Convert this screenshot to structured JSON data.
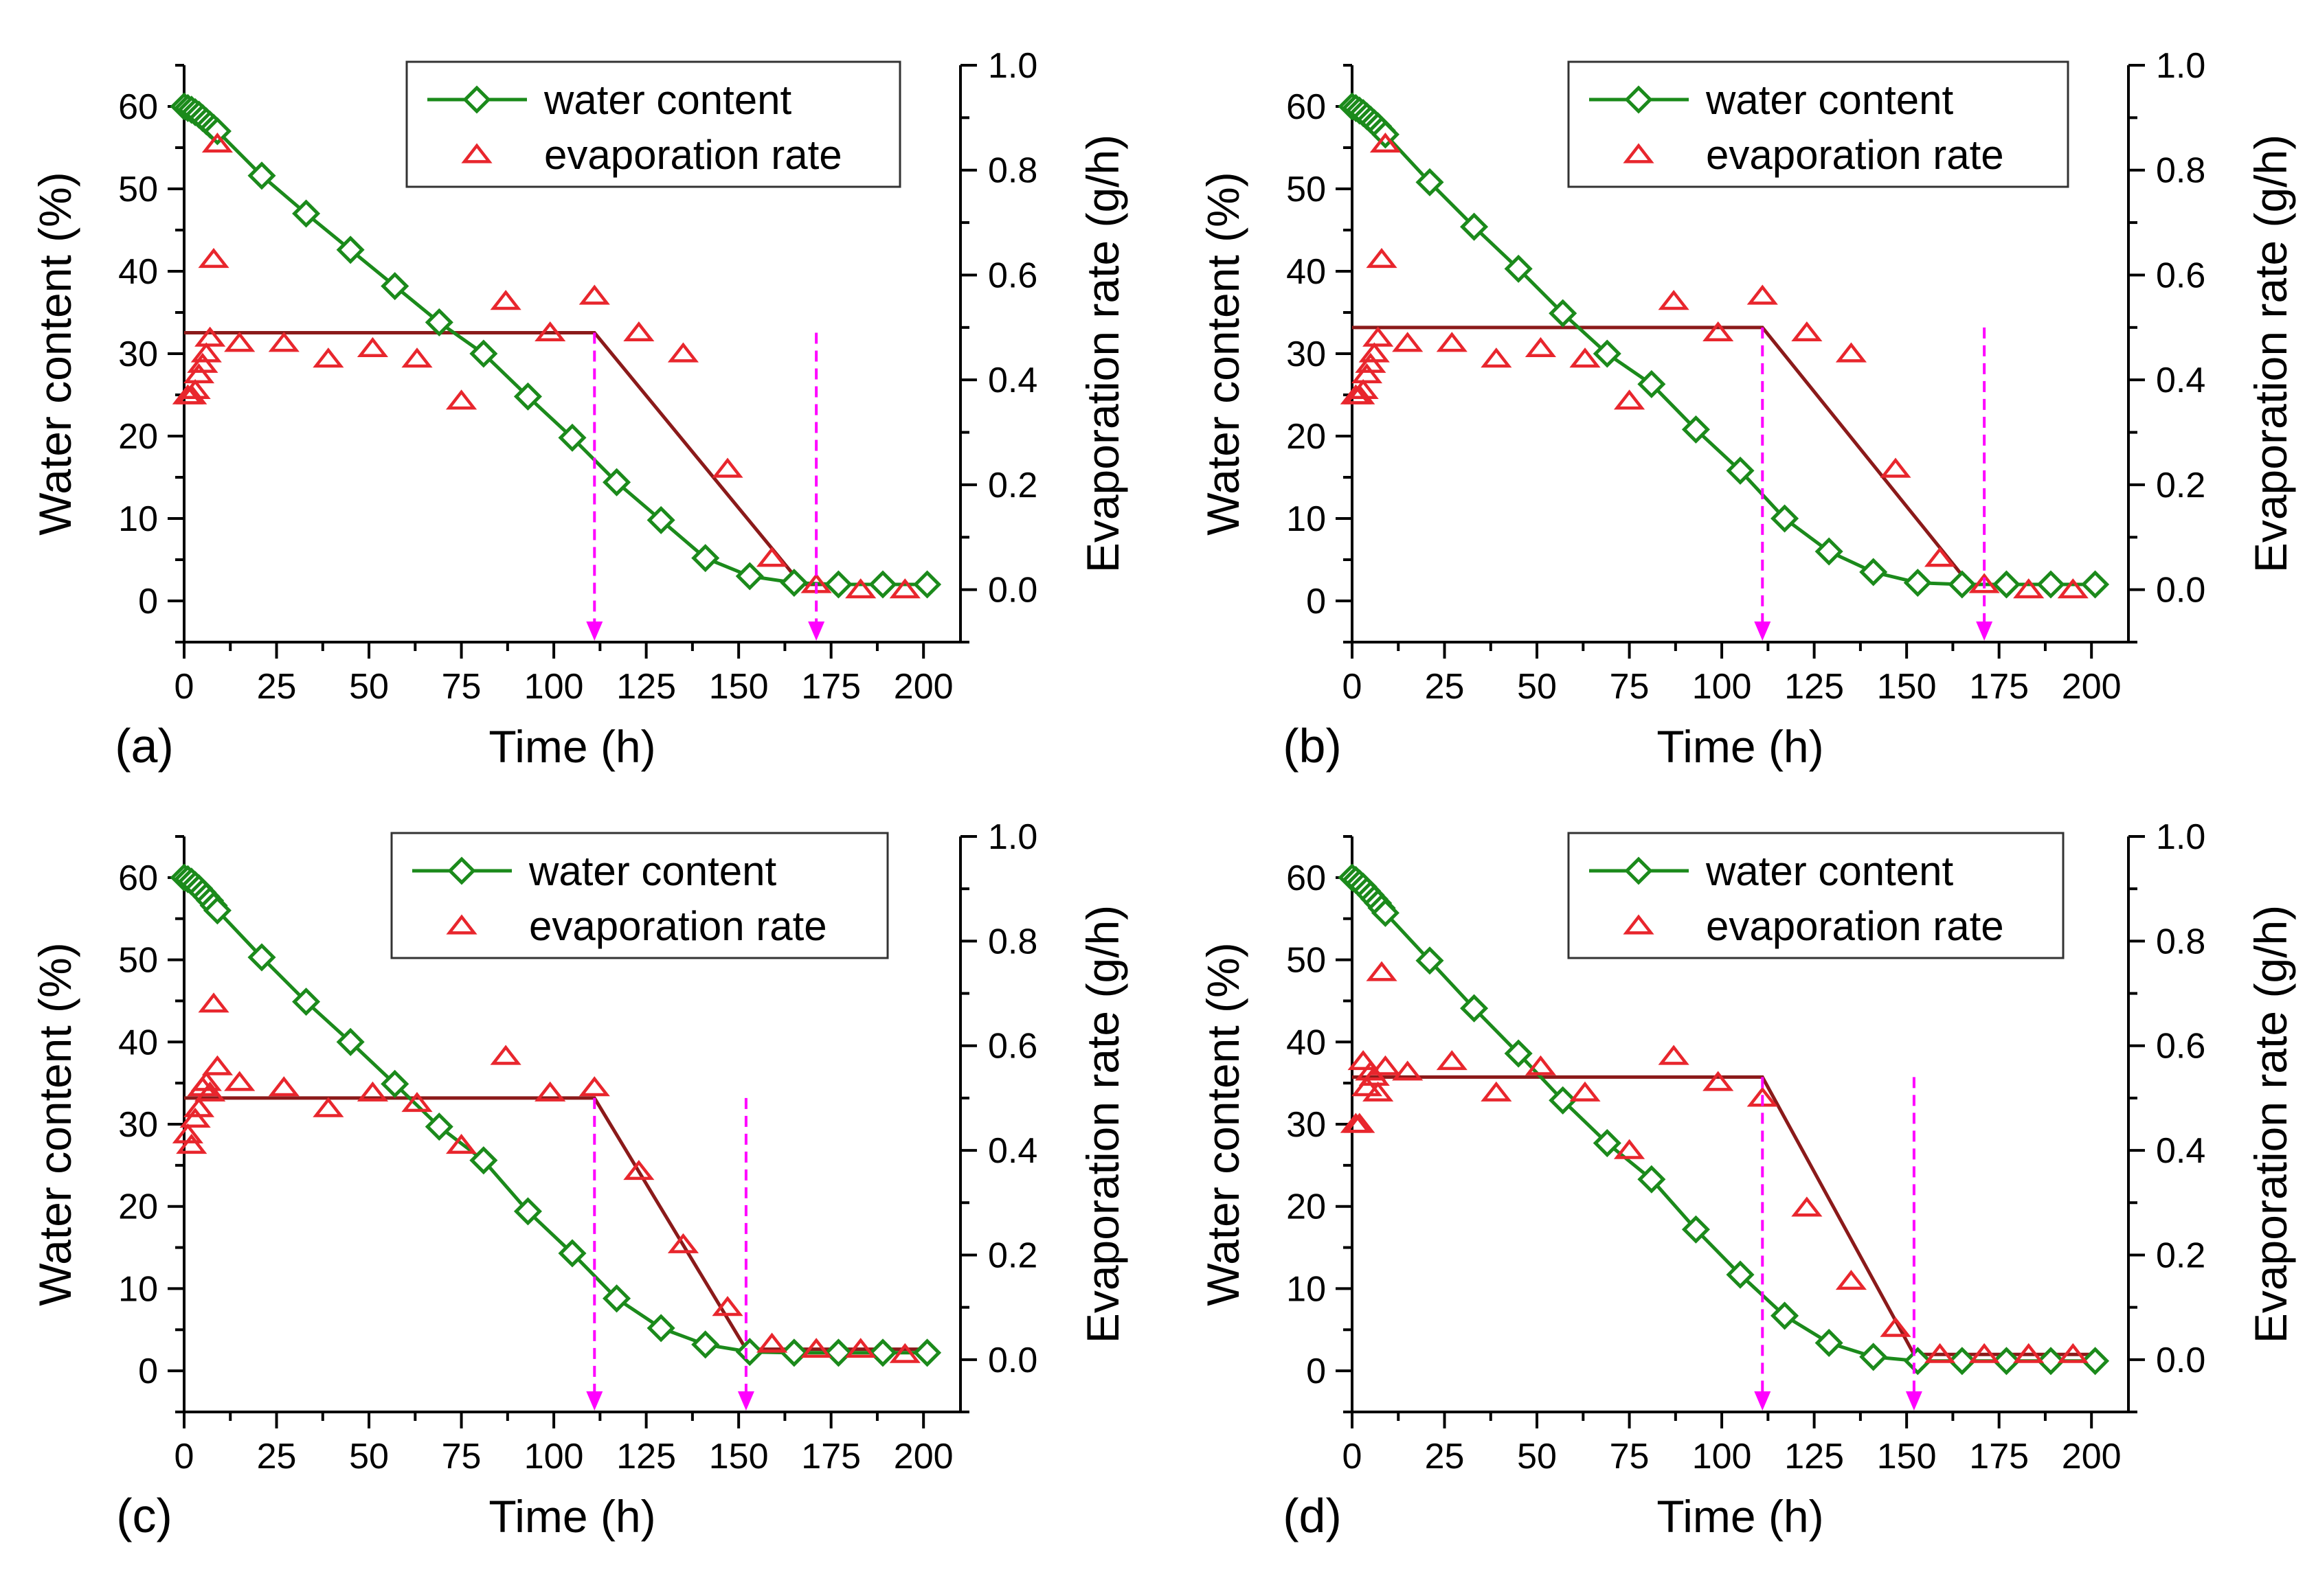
{
  "colors": {
    "water_content": "#1b8a1b",
    "evaporation_rate": "#e8262d",
    "fit_line": "#8b1a1a",
    "marker": "#ff00ff"
  },
  "chart_data": [
    {
      "type": "line",
      "panel_label": "(a)",
      "xlabel": "Time (h)",
      "ylabel": "Water content (%)",
      "y2label": "Evaporation rate (g/h)",
      "xlim": [
        0,
        210
      ],
      "ylim": [
        -5,
        65
      ],
      "y2lim": [
        -0.1,
        1.0
      ],
      "x_ticks": [
        "0",
        "25",
        "50",
        "75",
        "100",
        "125",
        "150",
        "175",
        "200"
      ],
      "y_ticks": [
        "0",
        "10",
        "20",
        "30",
        "40",
        "50",
        "60"
      ],
      "y2_ticks": [
        "0.0",
        "0.2",
        "0.4",
        "0.6",
        "0.8",
        "1.0"
      ],
      "legend": [
        "water content",
        "evaporation rate"
      ],
      "legend_position": "top-right",
      "series": [
        {
          "name": "water content",
          "axis": "left",
          "x": [
            0,
            1,
            2,
            3,
            4,
            5,
            6,
            7,
            8,
            9,
            21,
            33,
            45,
            57,
            69,
            81,
            93,
            105,
            117,
            129,
            141,
            153,
            165,
            177,
            189,
            201
          ],
          "y": [
            60,
            59.8,
            59.6,
            59.3,
            59.0,
            58.6,
            58.2,
            57.8,
            57.4,
            57.0,
            51.6,
            47.0,
            42.6,
            38.2,
            33.8,
            30.0,
            24.8,
            19.8,
            14.4,
            9.8,
            5.2,
            3.0,
            2.2,
            2.0,
            2.0,
            2.0
          ]
        },
        {
          "name": "evaporation rate",
          "axis": "right",
          "x": [
            1,
            2,
            3,
            4,
            5,
            6,
            7,
            8,
            9,
            15,
            27,
            39,
            51,
            63,
            75,
            87,
            99,
            111,
            123,
            135,
            147,
            159,
            171,
            183,
            195
          ],
          "y": [
            0.37,
            0.37,
            0.38,
            0.41,
            0.43,
            0.45,
            0.48,
            0.63,
            0.85,
            0.47,
            0.47,
            0.44,
            0.46,
            0.44,
            0.36,
            0.55,
            0.49,
            0.56,
            0.49,
            0.45,
            0.23,
            0.06,
            0.01,
            0.0,
            0.0
          ]
        }
      ],
      "fit_line": {
        "axis": "right",
        "x": [
          0,
          111,
          167,
          200
        ],
        "y": [
          0.49,
          0.49,
          0.01,
          0.01
        ]
      },
      "markers_x": [
        111,
        171
      ]
    },
    {
      "type": "line",
      "panel_label": "(b)",
      "xlabel": "Time (h)",
      "ylabel": "Water content (%)",
      "y2label": "Evaporation rate (g/h)",
      "xlim": [
        0,
        210
      ],
      "ylim": [
        -5,
        65
      ],
      "y2lim": [
        -0.1,
        1.0
      ],
      "x_ticks": [
        "0",
        "25",
        "50",
        "75",
        "100",
        "125",
        "150",
        "175",
        "200"
      ],
      "y_ticks": [
        "0",
        "10",
        "20",
        "30",
        "40",
        "50",
        "60"
      ],
      "y2_ticks": [
        "0.0",
        "0.2",
        "0.4",
        "0.6",
        "0.8",
        "1.0"
      ],
      "legend": [
        "water content",
        "evaporation rate"
      ],
      "legend_position": "top-right",
      "series": [
        {
          "name": "water content",
          "axis": "left",
          "x": [
            0,
            1,
            2,
            3,
            4,
            5,
            6,
            7,
            8,
            9,
            21,
            33,
            45,
            57,
            69,
            81,
            93,
            105,
            117,
            129,
            141,
            153,
            165,
            177,
            189,
            201
          ],
          "y": [
            60,
            59.8,
            59.5,
            59.2,
            58.8,
            58.4,
            58.0,
            57.6,
            57.1,
            56.6,
            50.8,
            45.4,
            40.3,
            34.9,
            30.0,
            26.3,
            20.8,
            15.8,
            10.0,
            6.0,
            3.5,
            2.2,
            2.0,
            2.0,
            2.0,
            2.0
          ]
        },
        {
          "name": "evaporation rate",
          "axis": "right",
          "x": [
            1,
            2,
            3,
            4,
            5,
            6,
            7,
            8,
            9,
            15,
            27,
            39,
            51,
            63,
            75,
            87,
            99,
            111,
            123,
            135,
            147,
            159,
            171,
            183,
            195
          ],
          "y": [
            0.37,
            0.37,
            0.38,
            0.41,
            0.43,
            0.45,
            0.48,
            0.63,
            0.85,
            0.47,
            0.47,
            0.44,
            0.46,
            0.44,
            0.36,
            0.55,
            0.49,
            0.56,
            0.49,
            0.45,
            0.23,
            0.06,
            0.01,
            0.0,
            0.0
          ]
        }
      ],
      "fit_line": {
        "axis": "right",
        "x": [
          0,
          111,
          167,
          200
        ],
        "y": [
          0.5,
          0.5,
          0.01,
          0.01
        ]
      },
      "markers_x": [
        111,
        171
      ]
    },
    {
      "type": "line",
      "panel_label": "(c)",
      "xlabel": "Time (h)",
      "ylabel": "Water content (%)",
      "y2label": "Evaporation rate (g/h)",
      "xlim": [
        0,
        210
      ],
      "ylim": [
        -5,
        65
      ],
      "y2lim": [
        -0.1,
        1.0
      ],
      "x_ticks": [
        "0",
        "25",
        "50",
        "75",
        "100",
        "125",
        "150",
        "175",
        "200"
      ],
      "y_ticks": [
        "0",
        "10",
        "20",
        "30",
        "40",
        "50",
        "60"
      ],
      "y2_ticks": [
        "0.0",
        "0.2",
        "0.4",
        "0.6",
        "0.8",
        "1.0"
      ],
      "legend": [
        "water content",
        "evaporation rate"
      ],
      "legend_position": "top-right",
      "series": [
        {
          "name": "water content",
          "axis": "left",
          "x": [
            0,
            1,
            2,
            3,
            4,
            5,
            6,
            7,
            8,
            9,
            21,
            33,
            45,
            57,
            69,
            81,
            93,
            105,
            117,
            129,
            141,
            153,
            165,
            177,
            189,
            201
          ],
          "y": [
            60,
            59.8,
            59.5,
            59.1,
            58.7,
            58.2,
            57.7,
            57.2,
            56.6,
            56.0,
            50.3,
            44.9,
            40.0,
            34.9,
            29.7,
            25.6,
            19.4,
            14.3,
            8.8,
            5.2,
            3.2,
            2.3,
            2.2,
            2.2,
            2.2,
            2.2
          ]
        },
        {
          "name": "evaporation rate",
          "axis": "right",
          "x": [
            1,
            2,
            3,
            4,
            5,
            6,
            7,
            8,
            9,
            15,
            27,
            39,
            51,
            63,
            75,
            87,
            99,
            111,
            123,
            135,
            147,
            159,
            171,
            183,
            195
          ],
          "y": [
            0.43,
            0.41,
            0.46,
            0.48,
            0.52,
            0.53,
            0.51,
            0.68,
            0.56,
            0.53,
            0.52,
            0.48,
            0.51,
            0.49,
            0.41,
            0.58,
            0.51,
            0.52,
            0.36,
            0.22,
            0.1,
            0.03,
            0.02,
            0.02,
            0.01
          ]
        }
      ],
      "fit_line": {
        "axis": "right",
        "x": [
          0,
          111,
          152,
          200
        ],
        "y": [
          0.5,
          0.5,
          0.02,
          0.02
        ]
      },
      "markers_x": [
        111,
        152
      ]
    },
    {
      "type": "line",
      "panel_label": "(d)",
      "xlabel": "Time (h)",
      "ylabel": "Water content (%)",
      "y2label": "Evaporation rate (g/h)",
      "xlim": [
        0,
        210
      ],
      "ylim": [
        -5,
        65
      ],
      "y2lim": [
        -0.1,
        1.0
      ],
      "x_ticks": [
        "0",
        "25",
        "50",
        "75",
        "100",
        "125",
        "150",
        "175",
        "200"
      ],
      "y_ticks": [
        "0",
        "10",
        "20",
        "30",
        "40",
        "50",
        "60"
      ],
      "y2_ticks": [
        "0.0",
        "0.2",
        "0.4",
        "0.6",
        "0.8",
        "1.0"
      ],
      "legend": [
        "water content",
        "evaporation rate"
      ],
      "legend_position": "top-right",
      "series": [
        {
          "name": "water content",
          "axis": "left",
          "x": [
            0,
            1,
            2,
            3,
            4,
            5,
            6,
            7,
            8,
            9,
            21,
            33,
            45,
            57,
            69,
            81,
            93,
            105,
            117,
            129,
            141,
            153,
            165,
            177,
            189,
            201
          ],
          "y": [
            60,
            59.7,
            59.3,
            58.9,
            58.4,
            57.9,
            57.4,
            56.9,
            56.3,
            55.7,
            49.9,
            44.1,
            38.6,
            32.9,
            27.7,
            23.3,
            17.2,
            11.7,
            6.7,
            3.4,
            1.7,
            1.2,
            1.2,
            1.2,
            1.2,
            1.2
          ]
        },
        {
          "name": "evaporation rate",
          "axis": "right",
          "x": [
            1,
            2,
            3,
            4,
            5,
            6,
            7,
            8,
            9,
            15,
            27,
            39,
            51,
            63,
            75,
            87,
            99,
            111,
            123,
            135,
            147,
            159,
            171,
            183,
            195
          ],
          "y": [
            0.45,
            0.45,
            0.57,
            0.52,
            0.55,
            0.54,
            0.51,
            0.74,
            0.56,
            0.55,
            0.57,
            0.51,
            0.56,
            0.51,
            0.4,
            0.58,
            0.53,
            0.5,
            0.29,
            0.15,
            0.06,
            0.01,
            0.01,
            0.01,
            0.01
          ]
        }
      ],
      "fit_line": {
        "axis": "right",
        "x": [
          0,
          111,
          152,
          200
        ],
        "y": [
          0.54,
          0.54,
          0.01,
          0.01
        ]
      },
      "markers_x": [
        111,
        152
      ]
    }
  ]
}
